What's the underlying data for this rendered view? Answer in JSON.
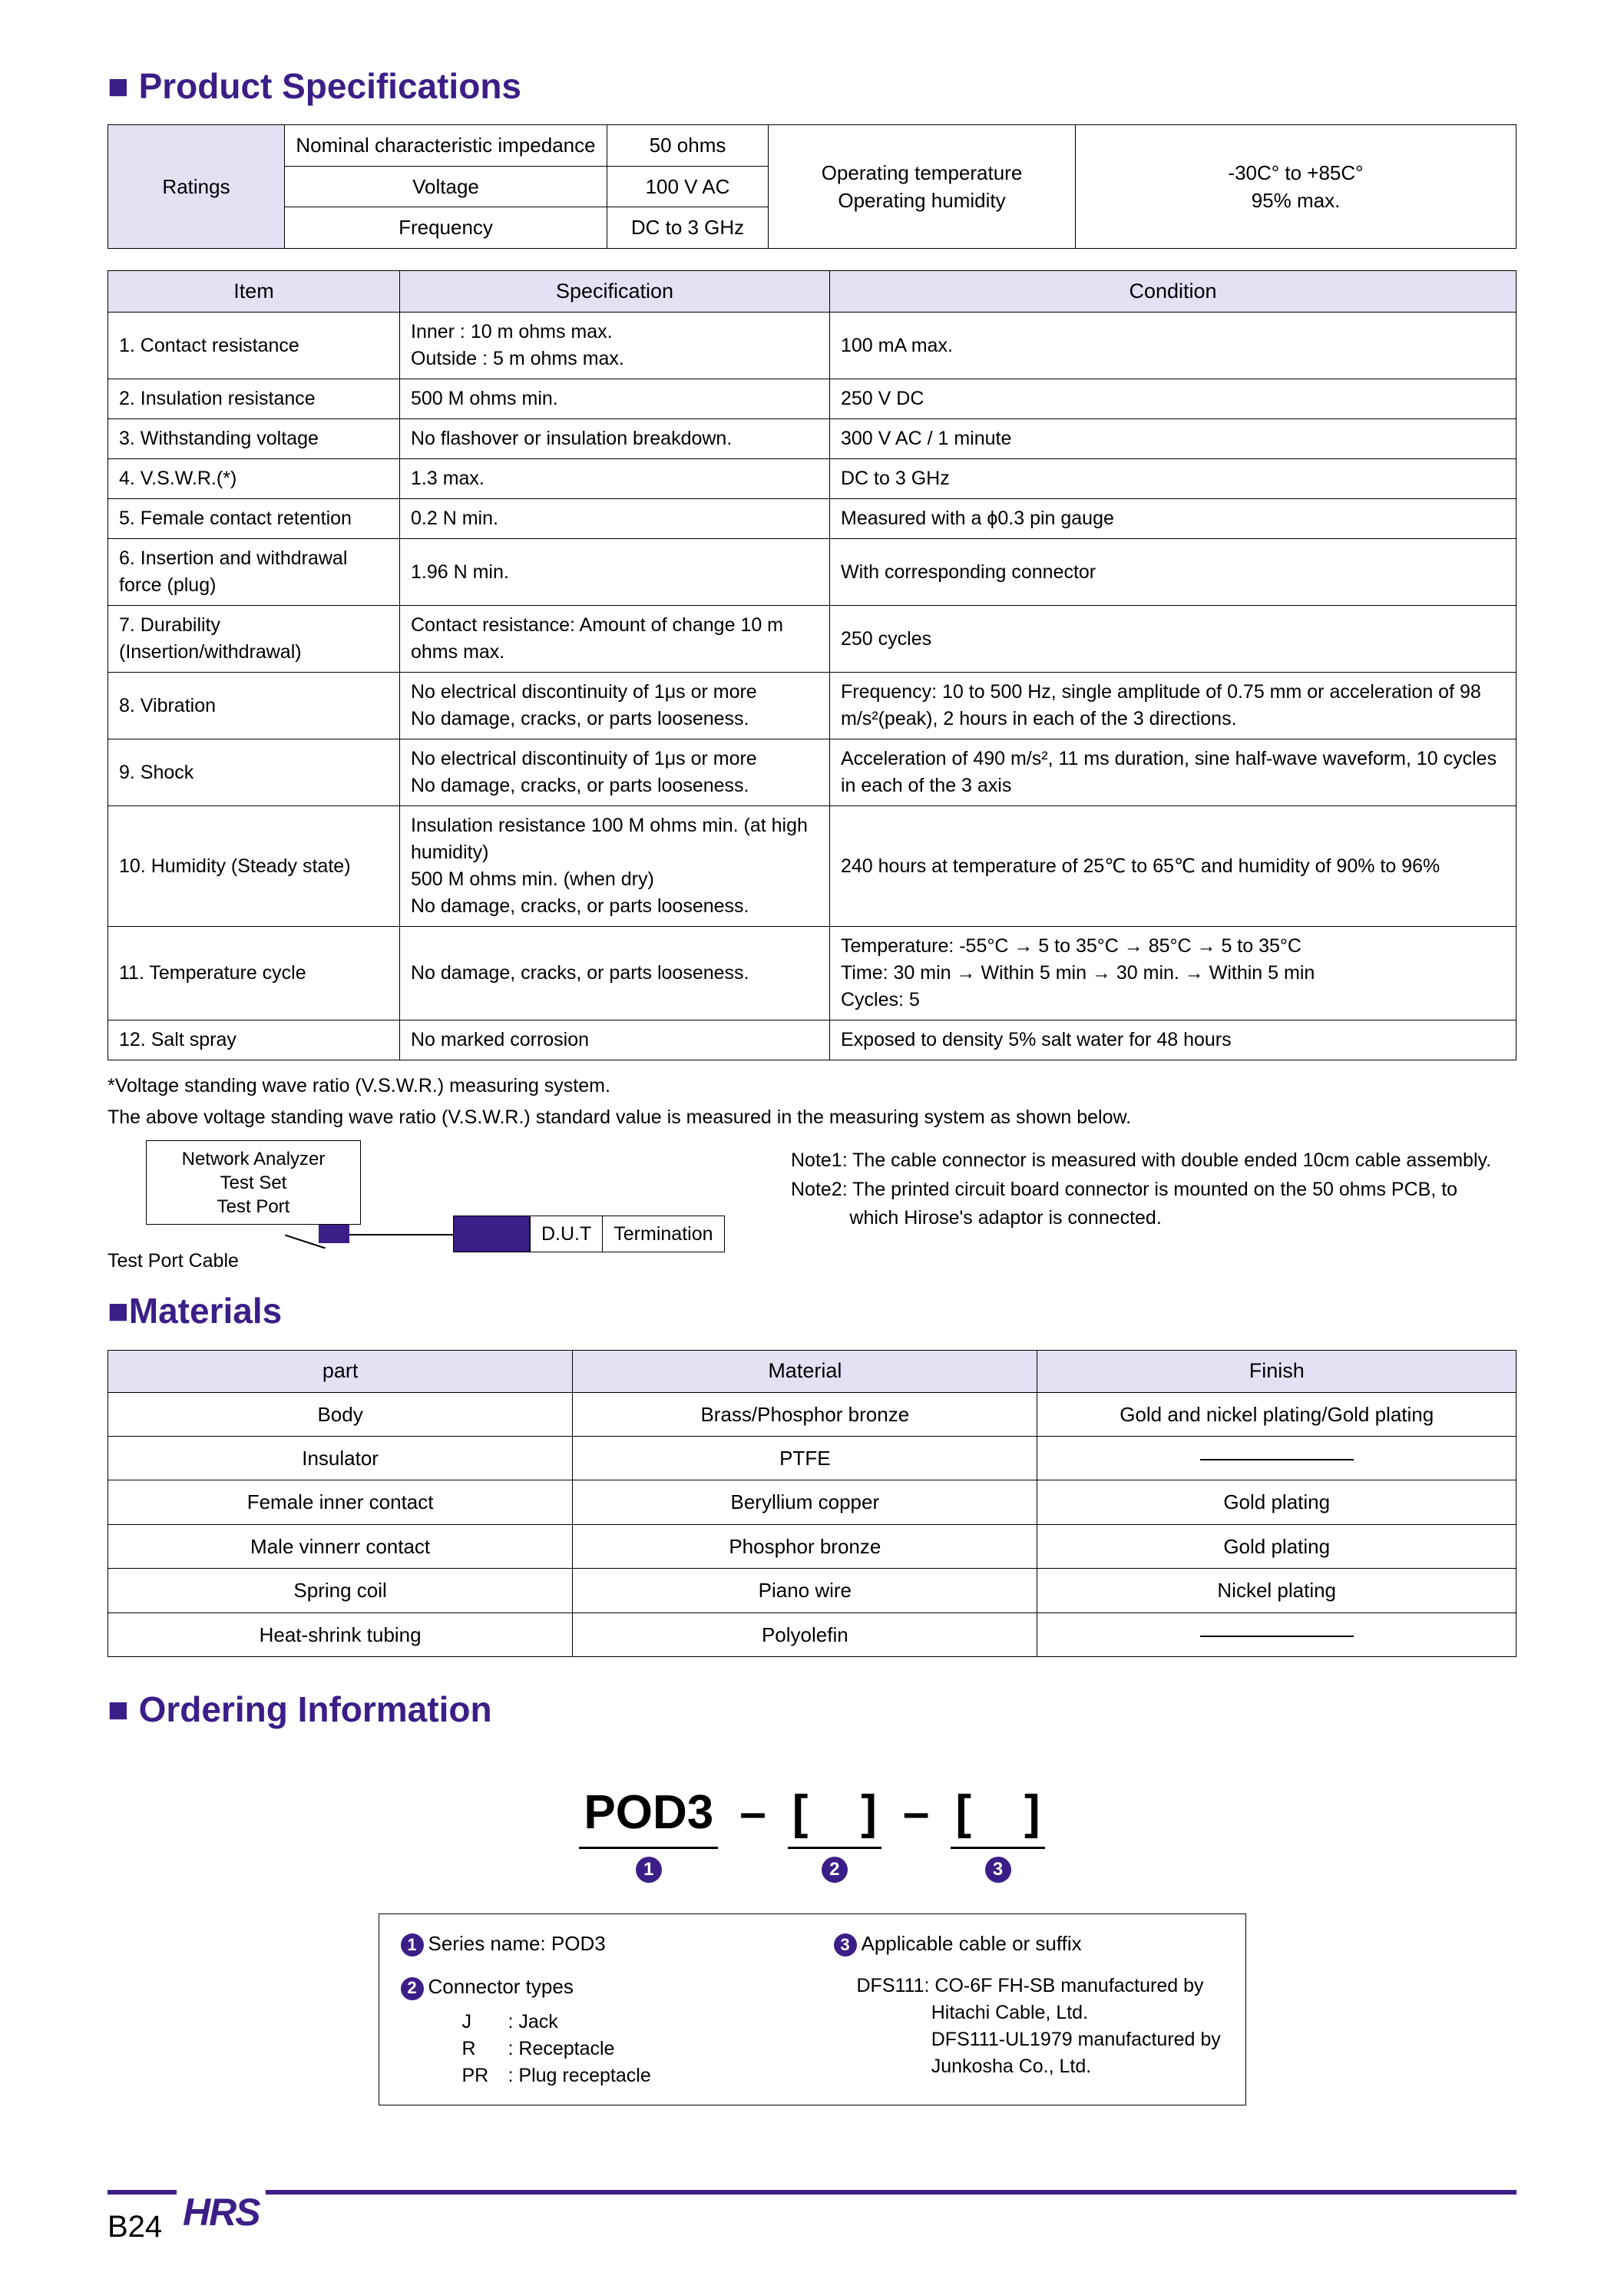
{
  "colors": {
    "accent": "#3b1e87",
    "header_bg": "#e6e0f5",
    "border": "#000000",
    "text": "#000000",
    "bg": "#ffffff"
  },
  "sections": {
    "specs_title": "■ Product Specifications",
    "materials_title": "■Materials",
    "ordering_title": "■ Ordering Information"
  },
  "ratings": {
    "label": "Ratings",
    "rows": [
      {
        "name": "Nominal characteristic impedance",
        "value": "50 ohms"
      },
      {
        "name": "Voltage",
        "value": "100 V AC"
      },
      {
        "name": "Frequency",
        "value": "DC to 3 GHz"
      }
    ],
    "env_label": "Operating temperature\nOperating humidity",
    "env_value": "-30C° to +85C°\n95% max."
  },
  "spec_headers": {
    "item": "Item",
    "spec": "Specification",
    "cond": "Condition"
  },
  "specs": [
    {
      "item": "1. Contact resistance",
      "spec": "Inner    : 10 m ohms max.\nOutside : 5 m ohms max.",
      "cond": "100 mA max."
    },
    {
      "item": "2. Insulation resistance",
      "spec": "500 M ohms min.",
      "cond": "250 V DC"
    },
    {
      "item": "3. Withstanding voltage",
      "spec": "No flashover or insulation breakdown.",
      "cond": "300 V AC / 1 minute"
    },
    {
      "item": "4. V.S.W.R.(*)",
      "spec": "1.3 max.",
      "cond": "DC to 3 GHz"
    },
    {
      "item": "5. Female contact retention",
      "spec": "0.2 N min.",
      "cond": "Measured with a ϕ0.3 pin gauge"
    },
    {
      "item": "6. Insertion and withdrawal force (plug)",
      "spec": "1.96 N min.",
      "cond": "With corresponding connector",
      "item_small": true
    },
    {
      "item": "7. Durability (Insertion/withdrawal)",
      "spec": "Contact resistance: Amount of change 10 m ohms max.",
      "cond": "250 cycles",
      "item_small": true
    },
    {
      "item": "8. Vibration",
      "spec": "No electrical discontinuity of 1μs or more\nNo damage, cracks, or parts looseness.",
      "cond": "Frequency: 10 to 500 Hz, single amplitude of 0.75 mm or acceleration of 98 m/s²(peak), 2 hours in each of the 3 directions.",
      "cond_small": true
    },
    {
      "item": "9. Shock",
      "spec": "No electrical discontinuity of 1μs or more\nNo damage, cracks, or parts looseness.",
      "cond": "Acceleration of 490 m/s², 11 ms duration, sine half-wave waveform, 10 cycles in each of the 3 axis"
    },
    {
      "item": "10. Humidity (Steady state)",
      "spec": "Insulation resistance 100 M ohms min. (at high humidity)\n                              500 M ohms min. (when dry)\nNo damage, cracks, or parts looseness.",
      "cond": "240 hours at temperature of 25℃ to 65℃ and humidity of 90% to 96%"
    },
    {
      "item": "11. Temperature cycle",
      "spec": "No damage, cracks, or parts looseness.",
      "cond": "Temperature:  -55°C → 5 to 35°C → 85°C → 5 to 35°C\nTime:              30 min → Within 5 min → 30 min. → Within 5 min\nCycles:          5",
      "cond_small": true
    },
    {
      "item": "12. Salt spray",
      "spec": "No marked corrosion",
      "cond": "Exposed to density 5% salt water for 48 hours"
    }
  ],
  "footnote1": "*Voltage standing wave ratio (V.S.W.R.) measuring system.",
  "footnote2": "The above voltage standing wave ratio (V.S.W.R.) standard value is measured in the measuring system as shown below.",
  "diagram": {
    "analyzer": "Network Analyzer\nTest Set\nTest Port",
    "dut": "D.U.T",
    "termination": "Termination",
    "tpc": "Test Port Cable"
  },
  "notes": {
    "n1": "Note1: The cable connector is measured with double ended 10cm cable assembly.",
    "n2": "Note2: The printed circuit board connector is mounted on the 50 ohms PCB, to",
    "n2b": "           which Hirose's adaptor is connected."
  },
  "materials": {
    "headers": {
      "part": "part",
      "material": "Material",
      "finish": "Finish"
    },
    "rows": [
      {
        "part": "Body",
        "material": "Brass/Phosphor bronze",
        "finish": "Gold and nickel plating/Gold plating"
      },
      {
        "part": "Insulator",
        "material": "PTFE",
        "finish": "—"
      },
      {
        "part": "Female inner contact",
        "material": "Beryllium copper",
        "finish": "Gold plating"
      },
      {
        "part": "Male vinnerr contact",
        "material": "Phosphor bronze",
        "finish": "Gold plating"
      },
      {
        "part": "Spring coil",
        "material": "Piano wire",
        "finish": "Nickel plating"
      },
      {
        "part": "Heat-shrink tubing",
        "material": "Polyolefin",
        "finish": "—"
      }
    ]
  },
  "ordering": {
    "series": "POD3",
    "dash": "–",
    "bracket_l": "[",
    "bracket_r": "]",
    "legend1": "Series name: POD3",
    "legend2": "Connector types",
    "types": [
      {
        "code": "J",
        "label": ": Jack"
      },
      {
        "code": "R",
        "label": ": Receptacle"
      },
      {
        "code": "PR",
        "label": ": Plug receptacle"
      }
    ],
    "legend3": "Applicable cable or suffix",
    "cable_text": "DFS111: CO-6F FH-SB manufactured by\n              Hitachi Cable, Ltd.\n              DFS111-UL1979 manufactured by\n              Junkosha Co., Ltd."
  },
  "footer": {
    "page": "B24",
    "logo": "HRS"
  }
}
